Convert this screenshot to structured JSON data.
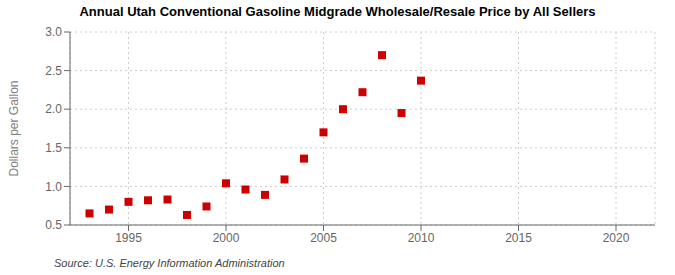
{
  "chart_data": {
    "type": "scatter",
    "title": "Annual Utah Conventional Gasoline Midgrade Wholesale/Resale Price by All Sellers",
    "ylabel": "Dollars per Gallon",
    "annotations": [
      "Source: U.S. Energy Information Administration"
    ],
    "x": [
      1993,
      1994,
      1995,
      1996,
      1997,
      1998,
      1999,
      2000,
      2001,
      2002,
      2003,
      2004,
      2005,
      2006,
      2007,
      2008,
      2009,
      2010
    ],
    "values": [
      0.65,
      0.7,
      0.8,
      0.82,
      0.83,
      0.63,
      0.74,
      1.04,
      0.96,
      0.89,
      1.09,
      1.36,
      1.7,
      2.0,
      2.22,
      2.7,
      1.95,
      2.37
    ],
    "color": "#cc0000",
    "marker": "square",
    "xlim": [
      1992,
      2022
    ],
    "ylim": [
      0.5,
      3.0
    ],
    "xticks": [
      1995,
      2000,
      2005,
      2010,
      2015,
      2020
    ],
    "yticks": [
      0.5,
      {
        "value": 1.0,
        "label": "1.0"
      },
      1.5,
      {
        "value": 2.0,
        "label": "2.0"
      },
      2.5,
      {
        "value": 3.0,
        "label": "3.0"
      }
    ],
    "grid": true
  }
}
